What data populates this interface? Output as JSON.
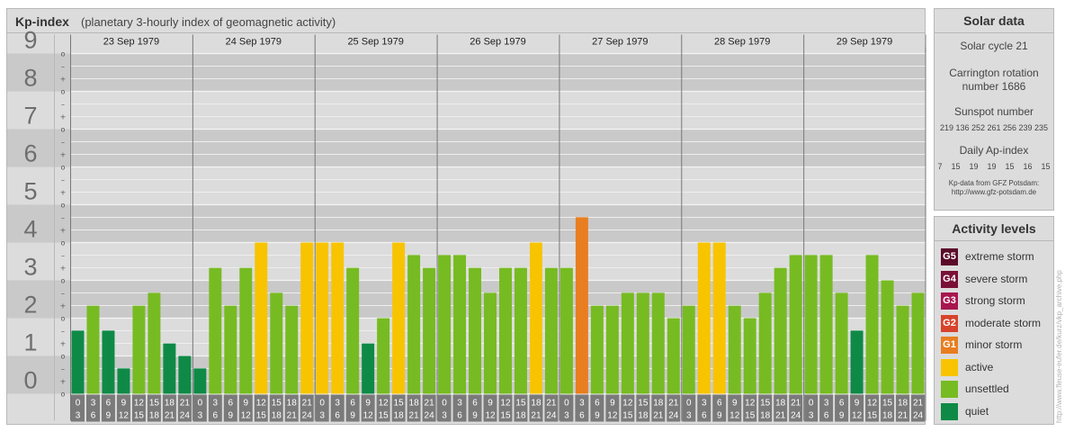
{
  "header": {
    "title": "Kp-index",
    "subtitle": "(planetary 3-hourly index of geomagnetic activity)"
  },
  "chart_data": {
    "type": "bar",
    "y_ticks": [
      "0",
      "1",
      "2",
      "3",
      "4",
      "5",
      "6",
      "7",
      "8",
      "9"
    ],
    "y_subticks": [
      "o",
      "+",
      "–"
    ],
    "ylim": [
      0,
      9
    ],
    "days": [
      "23 Sep 1979",
      "24 Sep 1979",
      "25 Sep 1979",
      "26 Sep 1979",
      "27 Sep 1979",
      "28 Sep 1979",
      "29 Sep 1979"
    ],
    "interval_labels": [
      [
        "0",
        "3"
      ],
      [
        "3",
        "6"
      ],
      [
        "6",
        "9"
      ],
      [
        "9",
        "12"
      ],
      [
        "12",
        "15"
      ],
      [
        "15",
        "18"
      ],
      [
        "18",
        "21"
      ],
      [
        "21",
        "24"
      ]
    ],
    "values": [
      [
        1.67,
        2.33,
        1.67,
        0.67,
        2.33,
        2.67,
        1.33,
        1.0
      ],
      [
        0.67,
        3.33,
        2.33,
        3.33,
        4.0,
        2.67,
        2.33,
        4.0
      ],
      [
        4.0,
        4.0,
        3.33,
        1.33,
        2.0,
        4.0,
        3.67,
        3.33
      ],
      [
        3.67,
        3.67,
        3.33,
        2.67,
        3.33,
        3.33,
        4.0,
        3.33
      ],
      [
        3.33,
        4.67,
        2.33,
        2.33,
        2.67,
        2.67,
        2.67,
        2.0
      ],
      [
        2.33,
        4.0,
        4.0,
        2.33,
        2.0,
        2.67,
        3.33,
        3.67
      ],
      [
        3.67,
        3.67,
        2.67,
        1.67,
        3.67,
        3.0,
        2.33,
        2.67
      ]
    ],
    "level_colors": {
      "quiet": "#0e8a46",
      "unsettled": "#77bb22",
      "active": "#f8c400",
      "minor": "#e87e20"
    },
    "grid": true
  },
  "solar": {
    "header": "Solar data",
    "cycle": "Solar cycle 21",
    "carrington_line1": "Carrington rotation",
    "carrington_line2": "number 1686",
    "sunspot_label": "Sunspot number",
    "sunspot_values": "219 136 252 261 256 239 235",
    "ap_label": "Daily Ap-index",
    "ap_values": "7    15    19    19    15    16    15",
    "source_line1": "Kp-data from GFZ Potsdam:",
    "source_line2": "http://www.gfz-potsdam.de"
  },
  "levels": {
    "header": "Activity levels",
    "items": [
      {
        "badge": "G5",
        "label": "extreme storm",
        "color": "#5b0a2a"
      },
      {
        "badge": "G4",
        "label": "severe storm",
        "color": "#7a1038"
      },
      {
        "badge": "G3",
        "label": "strong storm",
        "color": "#a8164f"
      },
      {
        "badge": "G2",
        "label": "moderate storm",
        "color": "#d8432c"
      },
      {
        "badge": "G1",
        "label": "minor storm",
        "color": "#e87e20"
      },
      {
        "badge": "",
        "label": "active",
        "color": "#f8c400"
      },
      {
        "badge": "",
        "label": "unsettled",
        "color": "#77bb22"
      },
      {
        "badge": "",
        "label": "quiet",
        "color": "#0e8a46"
      }
    ]
  },
  "credit": "http://www.fleuse-eufer.de/kurz/vkp_archive.php"
}
